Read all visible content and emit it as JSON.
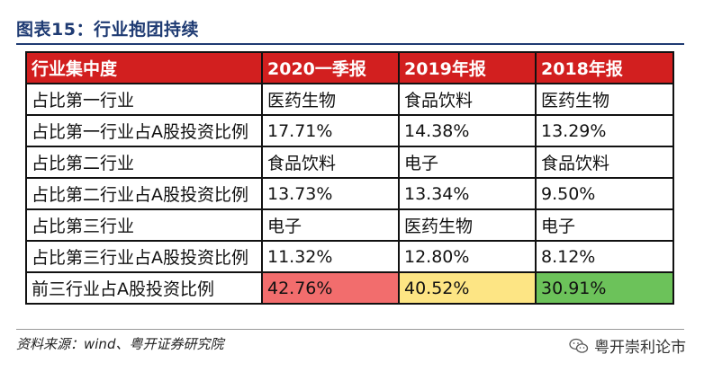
{
  "title": "图表15：行业抱团持续",
  "table": {
    "headers": [
      "行业集中度",
      "2020一季报",
      "2019年报",
      "2018年报"
    ],
    "rows": [
      [
        "占比第一行业",
        "医药生物",
        "食品饮料",
        "医药生物"
      ],
      [
        "占比第一行业占A股投资比例",
        "17.71%",
        "14.38%",
        "13.29%"
      ],
      [
        "占比第二行业",
        "食品饮料",
        "电子",
        "食品饮料"
      ],
      [
        "占比第二行业占A股投资比例",
        "13.73%",
        "13.34%",
        "9.50%"
      ],
      [
        "占比第三行业",
        "电子",
        "医药生物",
        "电子"
      ],
      [
        "占比第三行业占A股投资比例",
        "11.32%",
        "12.80%",
        "8.12%"
      ],
      [
        "前三行业占A股投资比例",
        "42.76%",
        "40.52%",
        "30.91%"
      ]
    ]
  },
  "highlight_colors": [
    "#f26d6d",
    "#fde584",
    "#6cc25a"
  ],
  "header_color": "#d21f1f",
  "source": "资料来源：wind、粤开证券研究院",
  "watermark": {
    "icon": "wechat-icon",
    "text": "粤开崇利论市"
  }
}
